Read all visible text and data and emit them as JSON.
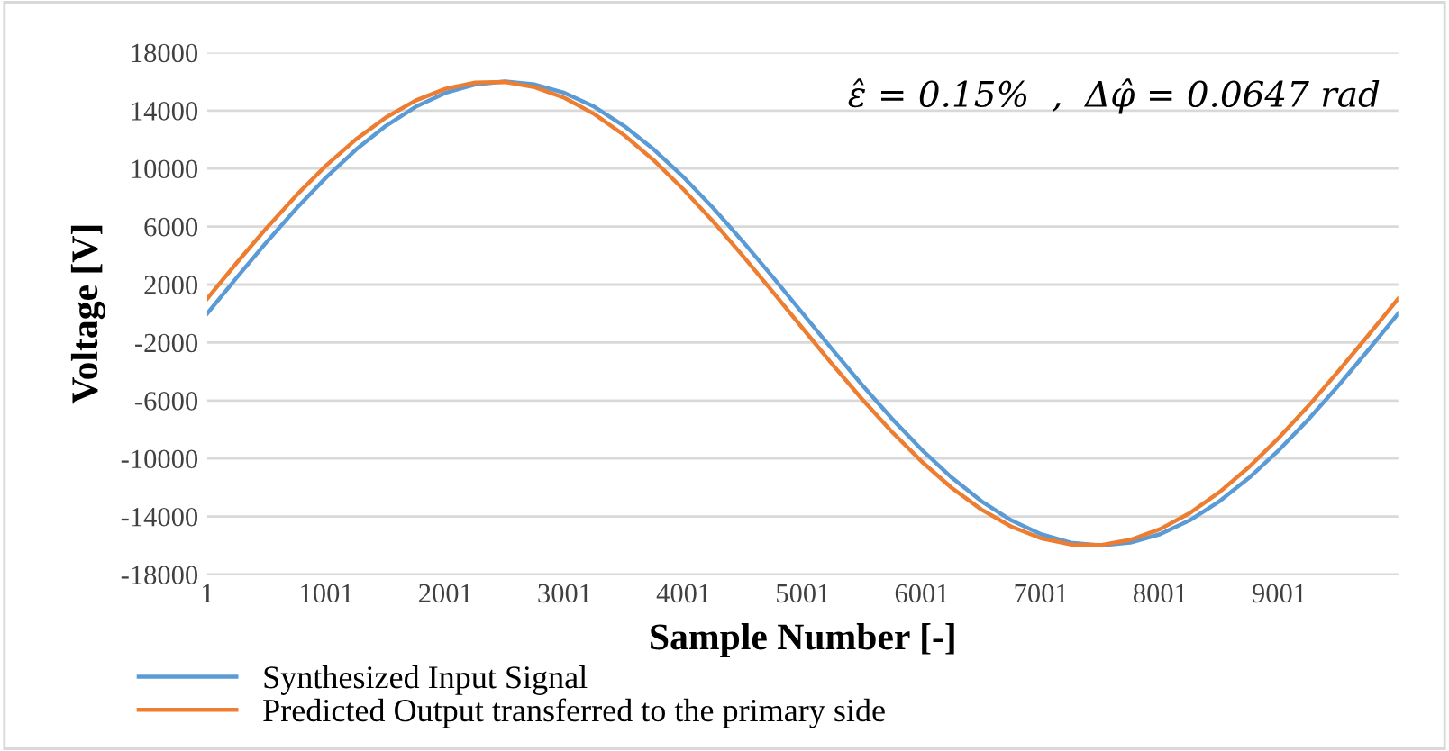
{
  "chart_data": {
    "type": "line",
    "xlabel": "Sample Number [-]",
    "ylabel": "Voltage [V]",
    "annotations": [
      "ε̂ = 0.15%  ,  Δφ̂ = 0.0647 rad"
    ],
    "x": [
      1,
      251,
      501,
      751,
      1001,
      1251,
      1501,
      1751,
      2001,
      2251,
      2501,
      2751,
      3001,
      3251,
      3501,
      3751,
      4001,
      4251,
      4501,
      4751,
      5001,
      5251,
      5501,
      5751,
      6001,
      6251,
      6501,
      6751,
      7001,
      7251,
      7501,
      7751,
      8001,
      8251,
      8501,
      8751,
      9001,
      9251,
      9501,
      9751,
      10001
    ],
    "series": [
      {
        "name": "Synthesized Input Signal",
        "color": "#5b9bd5",
        "values": [
          0,
          2500,
          4940,
          7260,
          9400,
          11310,
          12940,
          14260,
          15220,
          15800,
          16000,
          15800,
          15220,
          14260,
          12940,
          11310,
          9400,
          7260,
          4940,
          2500,
          0,
          -2500,
          -4940,
          -7260,
          -9400,
          -11310,
          -12940,
          -14260,
          -15220,
          -15800,
          -16000,
          -15800,
          -15220,
          -14260,
          -12940,
          -11310,
          -9400,
          -7260,
          -4940,
          -2500,
          0
        ]
      },
      {
        "name": "Predicted Output transferred to the primary side",
        "color": "#ed7d31",
        "values": [
          1030,
          3520,
          5920,
          8170,
          10220,
          12020,
          13520,
          14690,
          15500,
          15930,
          15970,
          15610,
          14870,
          13760,
          12310,
          10560,
          8550,
          6330,
          3950,
          1480,
          -1030,
          -3520,
          -5920,
          -8170,
          -10220,
          -12020,
          -13520,
          -14690,
          -15500,
          -15930,
          -15970,
          -15610,
          -14870,
          -13760,
          -12310,
          -10560,
          -8550,
          -6330,
          -3950,
          -1480,
          1030
        ]
      }
    ],
    "xlim": [
      1,
      10001
    ],
    "xticks": [
      1,
      1001,
      2001,
      3001,
      4001,
      5001,
      6001,
      7001,
      8001,
      9001
    ],
    "ylim": [
      -18000,
      18000
    ],
    "yticks": [
      -18000,
      -14000,
      -10000,
      -6000,
      -2000,
      2000,
      6000,
      10000,
      14000,
      18000
    ],
    "grid": "y",
    "legend": "bottom left",
    "marker": "none",
    "line_style": "solid"
  }
}
